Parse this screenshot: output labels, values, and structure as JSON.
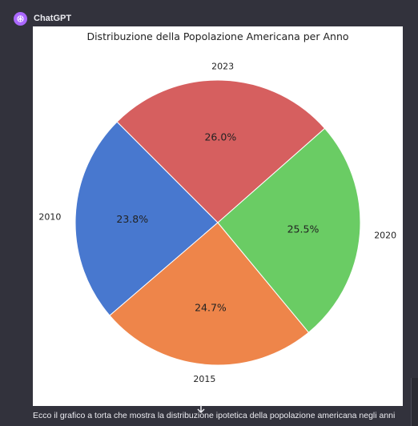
{
  "header": {
    "sender": "ChatGPT",
    "avatar_icon": "openai-logo-icon",
    "avatar_color": "#ab68ff"
  },
  "message": {
    "text": "Ecco il grafico a torta che mostra la distribuzione ipotetica della popolazione americana negli anni"
  },
  "scroll_icon": "arrow-down-icon",
  "chart_data": {
    "type": "pie",
    "title": "Distribuzione della Popolazione Americana per Anno",
    "categories": [
      "2010",
      "2015",
      "2020",
      "2023"
    ],
    "values": [
      23.8,
      24.7,
      25.5,
      26.0
    ],
    "labels": [
      "23.8%",
      "24.7%",
      "25.5%",
      "26.0%"
    ],
    "colors": [
      "#4878cf",
      "#ee854a",
      "#6acc64",
      "#d65f5f"
    ],
    "start_angle_deg": 135,
    "direction": "counterclockwise",
    "legend": "none"
  }
}
